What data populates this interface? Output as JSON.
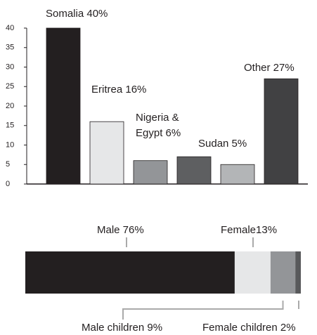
{
  "chart_data": [
    {
      "type": "bar",
      "values": [
        40,
        16,
        6,
        7,
        5,
        27
      ],
      "value_labels": [
        "Somalia 40%",
        "Eritrea 16%",
        "Nigeria &\nEgypt 6%",
        null,
        "Sudan 5%",
        "Other 27%"
      ],
      "colors": [
        "#231f20",
        "#e6e7e8",
        "#939598",
        "#5e5f61",
        "#b3b5b7",
        "#414143"
      ],
      "ylim": [
        0,
        40
      ],
      "yticks": [
        0,
        5,
        10,
        15,
        20,
        25,
        30,
        35,
        40
      ]
    },
    {
      "type": "stacked_hbar",
      "xlim": [
        0,
        100
      ],
      "segments": [
        {
          "label": "Male 76%",
          "value": 76,
          "color": "#231f20"
        },
        {
          "label": "Female13%",
          "value": 13,
          "color": "#e6e7e8"
        },
        {
          "label": "Male children 9%",
          "value": 9,
          "color": "#939598"
        },
        {
          "label": "Female children 2%",
          "value": 2,
          "color": "#58595b"
        }
      ]
    }
  ]
}
